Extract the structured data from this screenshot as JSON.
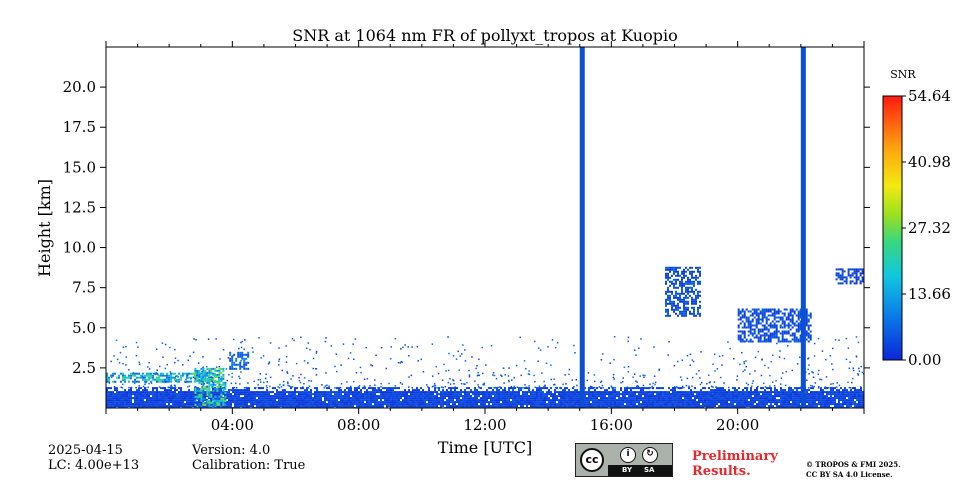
{
  "chart_data": {
    "type": "heatmap",
    "title": "SNR at 1064 nm FR of pollyxt_tropos at Kuopio",
    "xlabel": "Time [UTC]",
    "ylabel": "Height [km]",
    "x_range_hours": [
      0,
      24
    ],
    "ylim_km": [
      0,
      22.5
    ],
    "x_ticks": [
      {
        "value": 4,
        "label": "04:00"
      },
      {
        "value": 8,
        "label": "08:00"
      },
      {
        "value": 12,
        "label": "12:00"
      },
      {
        "value": 16,
        "label": "16:00"
      },
      {
        "value": 20,
        "label": "20:00"
      }
    ],
    "y_ticks": [
      {
        "value": 2.5,
        "label": "2.5"
      },
      {
        "value": 5.0,
        "label": "5.0"
      },
      {
        "value": 7.5,
        "label": "7.5"
      },
      {
        "value": 10.0,
        "label": "10.0"
      },
      {
        "value": 12.5,
        "label": "12.5"
      },
      {
        "value": 15.0,
        "label": "15.0"
      },
      {
        "value": 17.5,
        "label": "17.5"
      },
      {
        "value": 20.0,
        "label": "20.0"
      }
    ],
    "colorbar": {
      "label": "SNR",
      "min": 0.0,
      "max": 54.64,
      "ticks": [
        {
          "value": 0.0,
          "label": "0.00"
        },
        {
          "value": 13.66,
          "label": "13.66"
        },
        {
          "value": 27.32,
          "label": "27.32"
        },
        {
          "value": 40.98,
          "label": "40.98"
        },
        {
          "value": 54.64,
          "label": "54.64"
        }
      ]
    },
    "features": [
      {
        "name": "boundary-layer",
        "t0": 0.0,
        "t1": 24.0,
        "h0": 0.0,
        "h1": 1.3,
        "snr": 3
      },
      {
        "name": "morning-aerosol-layer",
        "t0": 0.0,
        "t1": 3.6,
        "h0": 1.7,
        "h1": 2.2,
        "snr": 16
      },
      {
        "name": "morning-cloud",
        "t0": 2.8,
        "t1": 3.8,
        "h0": 0.0,
        "h1": 2.5,
        "snr": 18
      },
      {
        "name": "morning-cloud-top",
        "t0": 3.9,
        "t1": 4.5,
        "h0": 2.4,
        "h1": 3.5,
        "snr": 6
      },
      {
        "name": "cirrus-evening-1",
        "t0": 17.7,
        "t1": 18.8,
        "h0": 5.8,
        "h1": 8.8,
        "snr": 4
      },
      {
        "name": "cirrus-evening-2",
        "t0": 20.0,
        "t1": 22.3,
        "h0": 4.2,
        "h1": 6.2,
        "snr": 4
      },
      {
        "name": "late-cirrus",
        "t0": 23.1,
        "t1": 24.0,
        "h0": 7.8,
        "h1": 8.7,
        "snr": 3
      }
    ],
    "gaps": [
      {
        "t0": 15.0,
        "t1": 15.15
      },
      {
        "t0": 22.0,
        "t1": 22.15
      }
    ]
  },
  "info": {
    "date": "2025-04-15",
    "lc": "LC: 4.00e+13",
    "version": "Version: 4.0",
    "calibration": "Calibration: True"
  },
  "badge": {
    "cc": "cc",
    "by": "BY",
    "sa": "SA"
  },
  "footer": {
    "preliminary_line1": "Preliminary",
    "preliminary_line2": "Results.",
    "license_line1": "© TROPOS & FMI 2025.",
    "license_line2": "CC BY SA 4.0 License."
  },
  "colors": {
    "background": "#ffffff",
    "gap": "#0a4fd6",
    "prelim_text": "#e8262b"
  }
}
